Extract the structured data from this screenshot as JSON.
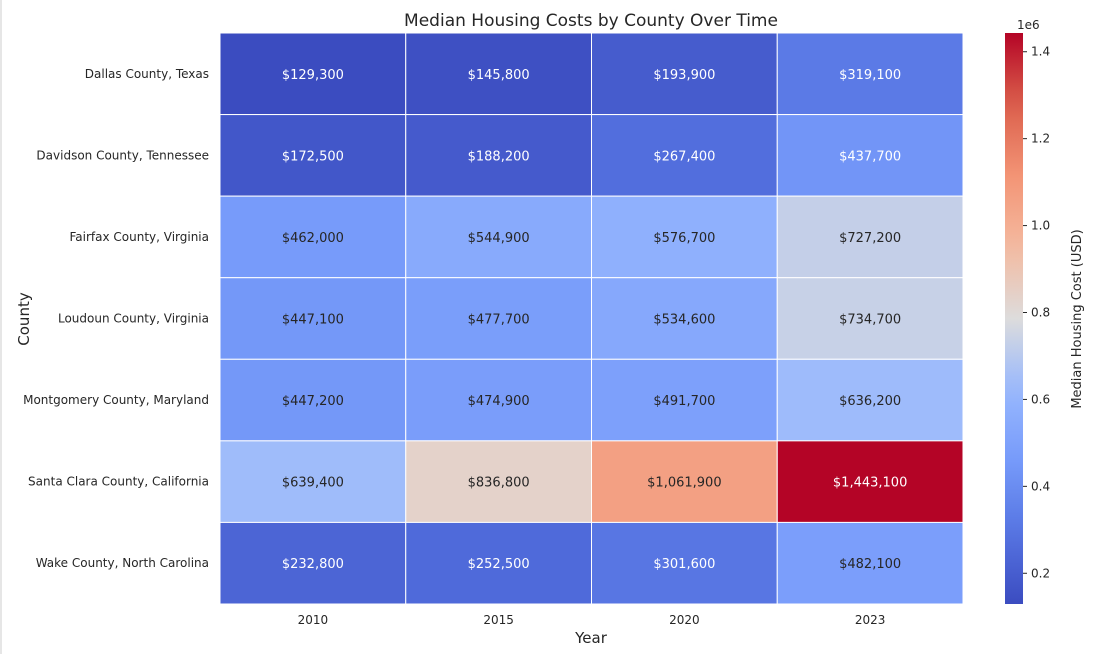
{
  "chart_data": {
    "type": "heatmap",
    "title": "Median Housing Costs by County Over Time",
    "xlabel": "Year",
    "ylabel": "County",
    "x": [
      "2010",
      "2015",
      "2020",
      "2023"
    ],
    "y": [
      "Dallas County, Texas",
      "Davidson County, Tennessee",
      "Fairfax County, Virginia",
      "Loudoun County, Virginia",
      "Montgomery County, Maryland",
      "Santa Clara County, California",
      "Wake County, North Carolina"
    ],
    "values": [
      [
        129300,
        145800,
        193900,
        319100
      ],
      [
        172500,
        188200,
        267400,
        437700
      ],
      [
        462000,
        544900,
        576700,
        727200
      ],
      [
        447100,
        477700,
        534600,
        734700
      ],
      [
        447200,
        474900,
        491700,
        636200
      ],
      [
        639400,
        836800,
        1061900,
        1443100
      ],
      [
        232800,
        252500,
        301600,
        482100
      ]
    ],
    "cell_labels": [
      [
        "$129,300",
        "$145,800",
        "$193,900",
        "$319,100"
      ],
      [
        "$172,500",
        "$188,200",
        "$267,400",
        "$437,700"
      ],
      [
        "$462,000",
        "$544,900",
        "$576,700",
        "$727,200"
      ],
      [
        "$447,100",
        "$477,700",
        "$534,600",
        "$734,700"
      ],
      [
        "$447,200",
        "$474,900",
        "$491,700",
        "$636,200"
      ],
      [
        "$639,400",
        "$836,800",
        "$1,061,900",
        "$1,443,100"
      ],
      [
        "$232,800",
        "$252,500",
        "$301,600",
        "$482,100"
      ]
    ],
    "colormap": "coolwarm",
    "colorbar": {
      "label": "Median Housing Cost (USD)",
      "range": [
        129300,
        1443100
      ],
      "ticks": [
        0.2,
        0.4,
        0.6,
        0.8,
        1.0,
        1.2,
        1.4
      ],
      "tick_scale": 1000000,
      "multiplier_label": "1e6"
    }
  }
}
